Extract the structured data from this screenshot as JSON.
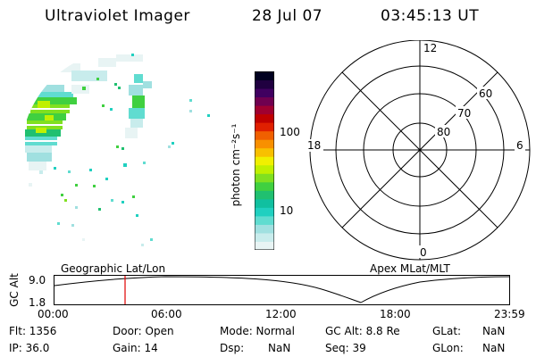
{
  "header": {
    "instrument": "Ultraviolet Imager",
    "date": "28 Jul 07",
    "time": "03:45:13 UT"
  },
  "colorbar": {
    "unit_label": "photon cm⁻²s⁻¹",
    "tick_100": "100",
    "tick_10": "10",
    "colors": [
      "#e8f4f4",
      "#c8ecec",
      "#a0e0e0",
      "#60dcd0",
      "#20d0c0",
      "#10c0a0",
      "#20c070",
      "#40d040",
      "#80e020",
      "#c0f000",
      "#f0f000",
      "#f8c000",
      "#f89000",
      "#f06000",
      "#e02000",
      "#c00000",
      "#a00030",
      "#700050",
      "#400060",
      "#200040",
      "#000020"
    ]
  },
  "polar_plot": {
    "mlt_12": "12",
    "mlt_18": "18",
    "mlt_6": "6",
    "mlt_0": "0",
    "lat_60": "60",
    "lat_70": "70",
    "lat_80": "80"
  },
  "labels": {
    "left_frame": "Geographic Lat/Lon",
    "right_frame": "Apex MLat/MLT"
  },
  "timeline": {
    "ylabel": "GC Alt",
    "y_top": "9.0",
    "y_bottom": "1.8",
    "ticks": [
      "00:00",
      "06:00",
      "12:00",
      "18:00",
      "23:59"
    ],
    "marker_color": "#e00000"
  },
  "info": {
    "flt": "Flt: 1356",
    "door": "Door: Open",
    "mode": "Mode: Normal",
    "gc_alt": "GC Alt: 8.8 Re",
    "glat_label": "GLat:",
    "glat_value": "NaN",
    "ip": "IP: 36.0",
    "gain": "Gain: 14",
    "dsp_label": "Dsp:",
    "dsp_value": "NaN",
    "seq": "Seq: 39",
    "glon_label": "GLon:",
    "glon_value": "NaN"
  }
}
